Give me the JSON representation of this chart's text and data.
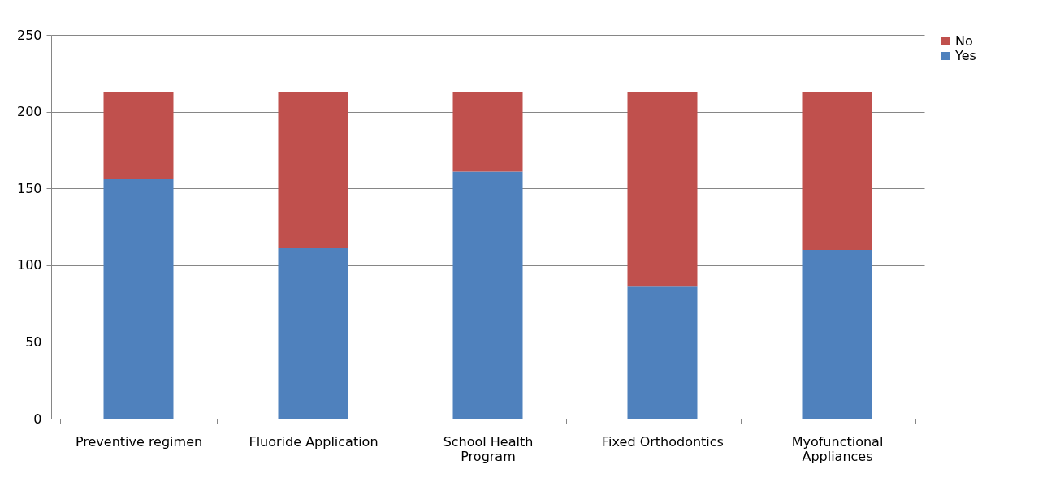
{
  "chart_data": {
    "type": "bar",
    "stacked": true,
    "categories": [
      "Preventive regimen",
      "Fluoride Application",
      "School Health Program",
      "Fixed Orthodontics",
      "Myofunctional Appliances"
    ],
    "series": [
      {
        "name": "Yes",
        "color": "#4f81bd",
        "values": [
          156,
          111,
          161,
          86,
          110
        ]
      },
      {
        "name": "No",
        "color": "#c0504d",
        "values": [
          57,
          102,
          52,
          127,
          103
        ]
      }
    ],
    "ylim": [
      0,
      250
    ],
    "yticks": [
      0,
      50,
      100,
      150,
      200,
      250
    ],
    "grid": "y",
    "legend": "right"
  }
}
